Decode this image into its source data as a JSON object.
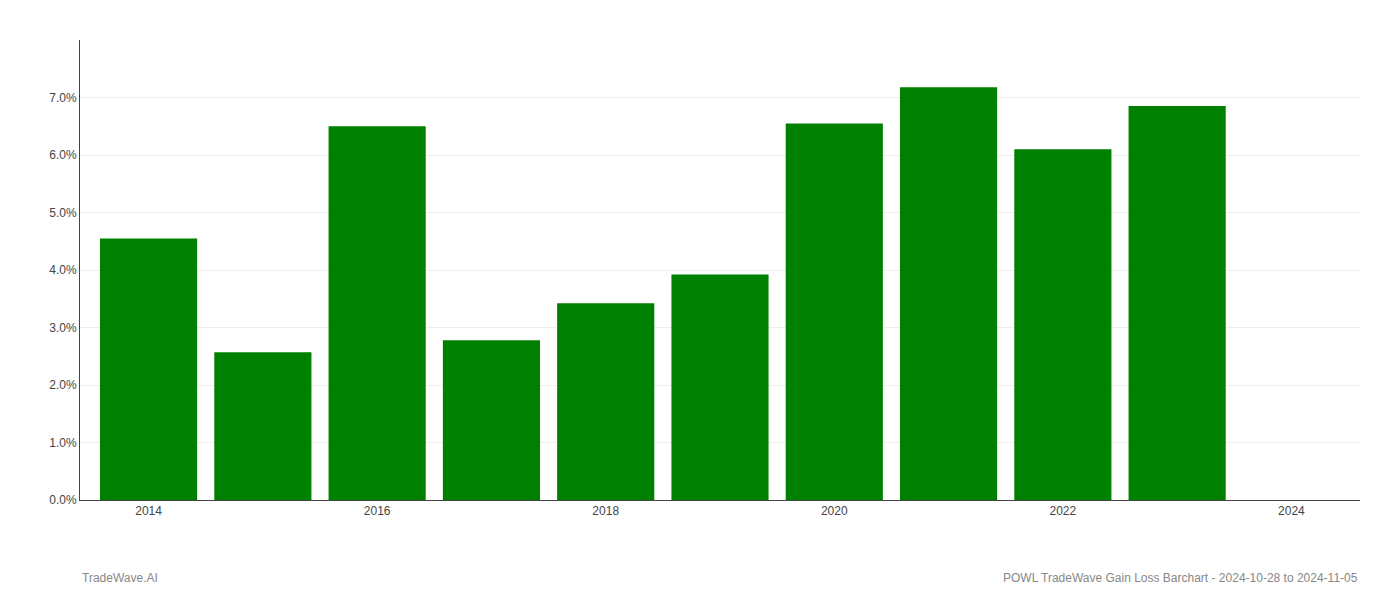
{
  "chart_data": {
    "type": "bar",
    "x": [
      2014,
      2015,
      2016,
      2017,
      2018,
      2019,
      2020,
      2021,
      2022,
      2023
    ],
    "values": [
      0.0455,
      0.0257,
      0.065,
      0.0278,
      0.0342,
      0.0392,
      0.0655,
      0.0718,
      0.061,
      0.0685
    ],
    "color": "#008000",
    "xlim": [
      2013.4,
      2024.6
    ],
    "xticks": [
      2014,
      2016,
      2018,
      2020,
      2022,
      2024
    ],
    "ylim": [
      0,
      0.08
    ],
    "yticks": [
      {
        "value": 0.0,
        "label": "0.0%"
      },
      {
        "value": 0.01,
        "label": "1.0%"
      },
      {
        "value": 0.02,
        "label": "2.0%"
      },
      {
        "value": 0.03,
        "label": "3.0%"
      },
      {
        "value": 0.04,
        "label": "4.0%"
      },
      {
        "value": 0.05,
        "label": "5.0%"
      },
      {
        "value": 0.06,
        "label": "6.0%"
      },
      {
        "value": 0.07,
        "label": "7.0%"
      }
    ],
    "grid": true,
    "annotations": [
      "TradeWave.AI",
      "POWL TradeWave Gain Loss Barchart - 2024-10-28 to 2024-11-05"
    ]
  }
}
